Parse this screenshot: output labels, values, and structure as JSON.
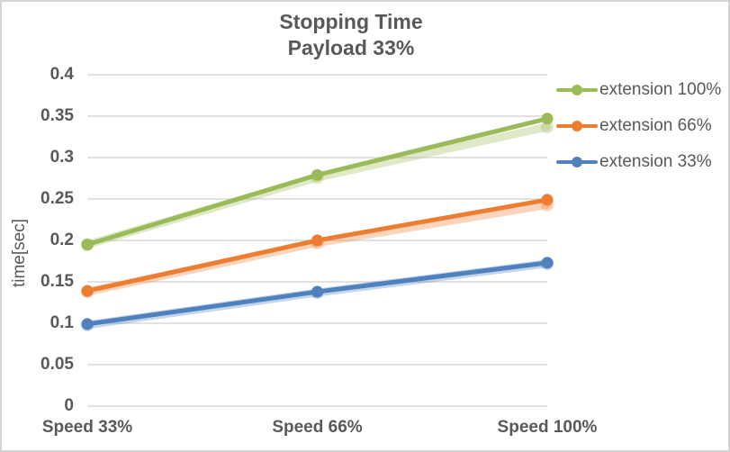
{
  "chart_data": {
    "type": "line",
    "title": "Stopping Time",
    "subtitle": "Payload 33%",
    "ylabel": "time[sec]",
    "xlabel": "",
    "categories": [
      "Speed 33%",
      "Speed 66%",
      "Speed 100%"
    ],
    "series": [
      {
        "name": "extension 100%",
        "color": "#9BBB59",
        "values": [
          0.195,
          0.279,
          0.347
        ],
        "shadow_values": [
          0.195,
          0.276,
          0.337
        ]
      },
      {
        "name": "extension 66%",
        "color": "#ED7D31",
        "values": [
          0.139,
          0.2,
          0.249
        ],
        "shadow_values": [
          0.138,
          0.197,
          0.243
        ]
      },
      {
        "name": "extension 33%",
        "color": "#4F81BD",
        "values": [
          0.099,
          0.138,
          0.173
        ],
        "shadow_values": [
          0.098,
          0.137,
          0.172
        ]
      }
    ],
    "ylim": [
      0,
      0.4
    ],
    "ytick_step": 0.05,
    "yticks": [
      "0",
      "0.05",
      "0.1",
      "0.15",
      "0.2",
      "0.25",
      "0.3",
      "0.35",
      "0.4"
    ],
    "grid": true,
    "legend_position": "right",
    "marker": "circle",
    "text_color": "#595959",
    "grid_color": "#D9D9D9",
    "frame_color": "#D4D4D4"
  }
}
